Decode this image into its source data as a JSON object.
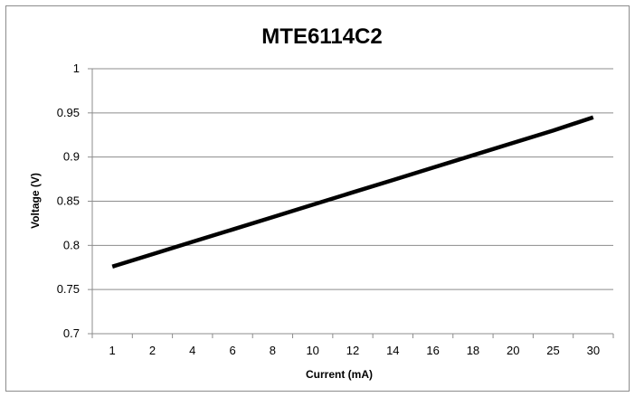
{
  "chart_data": {
    "type": "line",
    "title": "MTE6114C2",
    "xlabel": "Current (mA)",
    "ylabel": "Voltage (V)",
    "categories": [
      "1",
      "2",
      "4",
      "6",
      "8",
      "10",
      "12",
      "14",
      "16",
      "18",
      "20",
      "25",
      "30"
    ],
    "series": [
      {
        "values": [
          0.776,
          0.79,
          0.804,
          0.818,
          0.832,
          0.846,
          0.86,
          0.874,
          0.888,
          0.902,
          0.916,
          0.93,
          0.945
        ],
        "color": "#000000"
      }
    ],
    "ylim": [
      0.7,
      1
    ],
    "yticks": [
      "0.7",
      "0.75",
      "0.8",
      "0.85",
      "0.9",
      "0.95",
      "1"
    ],
    "grid": "horizontal",
    "legend": "none"
  }
}
